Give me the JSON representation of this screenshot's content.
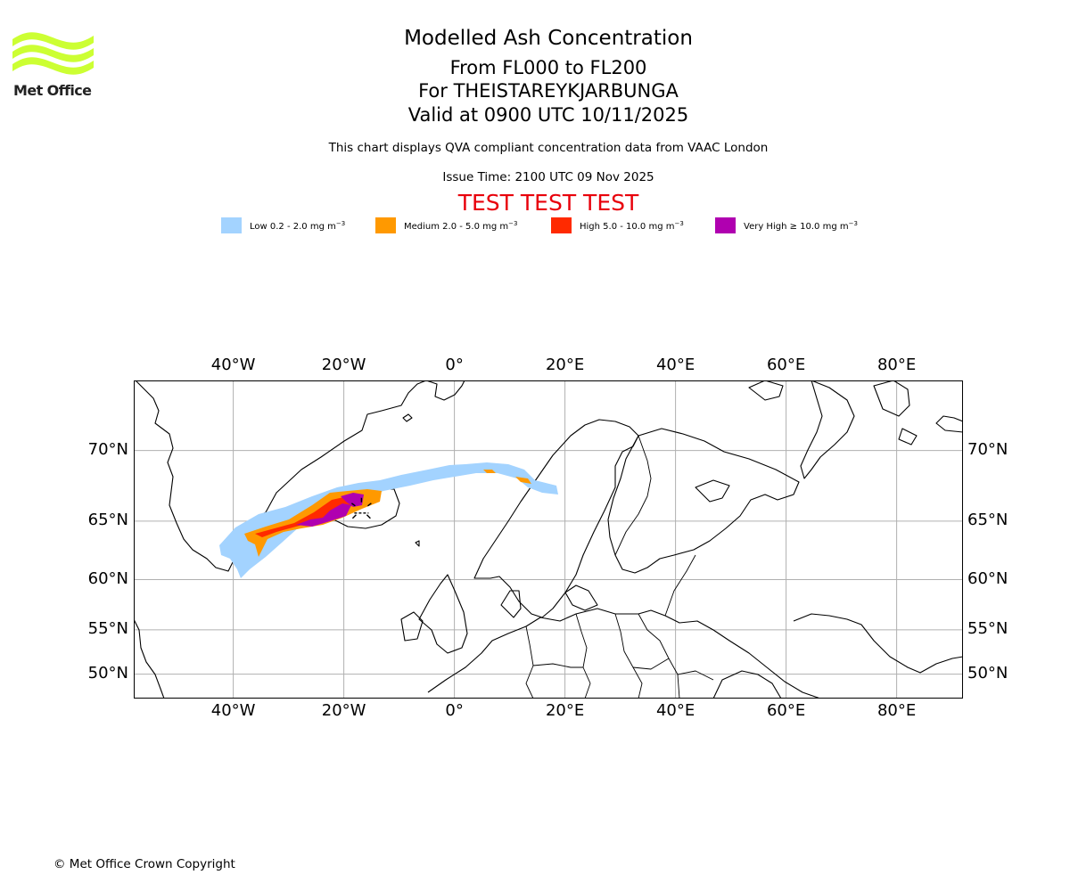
{
  "logo": {
    "text": "Met Office",
    "color": "#ccff33"
  },
  "header": {
    "title": "Modelled Ash Concentration",
    "levels": "From FL000 to FL200",
    "volcano": "For THEISTAREYKJARBUNGA",
    "valid": "Valid at 0900 UTC 10/11/2025",
    "description": "This chart displays QVA compliant concentration data from VAAC London",
    "issue_time": "Issue Time: 2100 UTC 09 Nov 2025",
    "test_banner": "TEST TEST TEST"
  },
  "legend": [
    {
      "label": "Low 0.2 - 2.0 mg m",
      "exp": "−3",
      "color": "#a3d3ff"
    },
    {
      "label": "Medium 2.0 - 5.0 mg m",
      "exp": "−3",
      "color": "#ff9900"
    },
    {
      "label": "High 5.0 - 10.0 mg m",
      "exp": "−3",
      "color": "#ff2a00"
    },
    {
      "label": "Very High  ≥  10.0 mg m",
      "exp": "−3",
      "color": "#b000b0"
    }
  ],
  "map": {
    "lon_range": [
      -58,
      92
    ],
    "lat_range": [
      47,
      74
    ],
    "lon_ticks": [
      {
        "value": -40,
        "label": "40°W"
      },
      {
        "value": -20,
        "label": "20°W"
      },
      {
        "value": 0,
        "label": "0°"
      },
      {
        "value": 20,
        "label": "20°E"
      },
      {
        "value": 40,
        "label": "40°E"
      },
      {
        "value": 60,
        "label": "60°E"
      },
      {
        "value": 80,
        "label": "80°E"
      }
    ],
    "lat_ticks": [
      {
        "value": 70,
        "label": "70°N"
      },
      {
        "value": 65,
        "label": "65°N"
      },
      {
        "value": 60,
        "label": "60°N"
      },
      {
        "value": 55,
        "label": "55°N"
      },
      {
        "value": 50,
        "label": "50°N"
      }
    ],
    "volcano_location": {
      "lon": -16.8,
      "lat": 65.9
    },
    "grid": true
  },
  "footer": {
    "copyright": "© Met Office Crown Copyright"
  }
}
